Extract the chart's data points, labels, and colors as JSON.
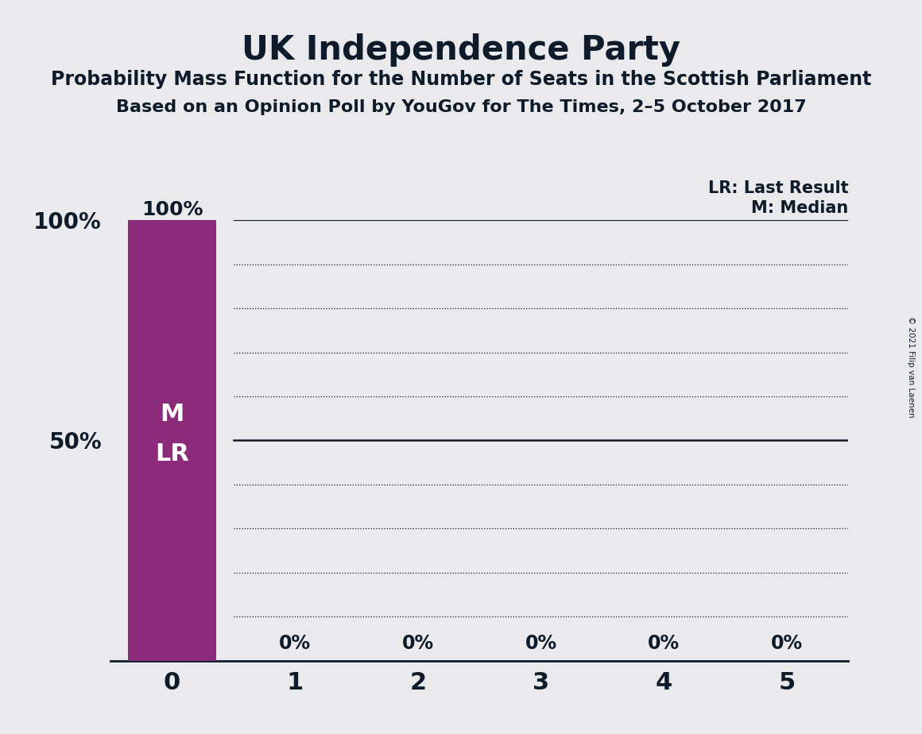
{
  "title": "UK Independence Party",
  "subtitle1": "Probability Mass Function for the Number of Seats in the Scottish Parliament",
  "subtitle2": "Based on an Opinion Poll by YouGov for The Times, 2–5 October 2017",
  "copyright": "© 2021 Filip van Laenen",
  "bar_values": [
    1.0,
    0.0,
    0.0,
    0.0,
    0.0,
    0.0
  ],
  "bar_labels": [
    "100%",
    "0%",
    "0%",
    "0%",
    "0%",
    "0%"
  ],
  "x_ticks": [
    0,
    1,
    2,
    3,
    4,
    5
  ],
  "ylim": [
    0,
    1.0
  ],
  "yticks": [
    0.0,
    0.1,
    0.2,
    0.3,
    0.4,
    0.5,
    0.6,
    0.7,
    0.8,
    0.9,
    1.0
  ],
  "ytick_labels": [
    "",
    "",
    "",
    "",
    "",
    "50%",
    "",
    "",
    "",
    "",
    "100%"
  ],
  "bar_color": "#8B2B7A",
  "background_color": "#EAEAEC",
  "plot_background_color": "#EAEAEC",
  "text_color": "#0d1b2a",
  "legend_lr": "LR: Last Result",
  "legend_m": "M: Median",
  "median_value": 0,
  "last_result_value": 0,
  "bar_label_color_top": "#0d1b2a",
  "bar_label_color_inside": "#FFFFFF",
  "last_result_line_color": "#0d1b2a",
  "grid_color": "#0d1b2a",
  "bar_width": 0.72
}
